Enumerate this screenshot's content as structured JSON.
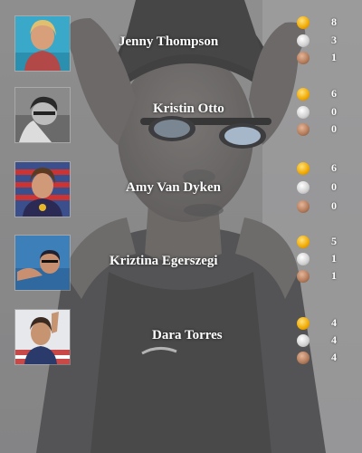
{
  "colors": {
    "gold": "#f0a800",
    "silver": "#d8d8d8",
    "bronze": "#b07a5a",
    "text": "#ffffff"
  },
  "athletes": [
    {
      "name": "Jenny Thompson",
      "photo": "jenny-thompson-photo",
      "medals": {
        "gold": "8",
        "silver": "3",
        "bronze": "1"
      }
    },
    {
      "name": "Kristin Otto",
      "photo": "kristin-otto-photo",
      "medals": {
        "gold": "6",
        "silver": "0",
        "bronze": "0"
      }
    },
    {
      "name": "Amy Van Dyken",
      "photo": "amy-van-dyken-photo",
      "medals": {
        "gold": "6",
        "silver": "0",
        "bronze": "0"
      }
    },
    {
      "name": "Kriztina Egerszegi",
      "photo": "kriztina-egerszegi-photo",
      "medals": {
        "gold": "5",
        "silver": "1",
        "bronze": "1"
      }
    },
    {
      "name": "Dara Torres",
      "photo": "dara-torres-photo",
      "medals": {
        "gold": "4",
        "silver": "4",
        "bronze": "4"
      }
    }
  ]
}
